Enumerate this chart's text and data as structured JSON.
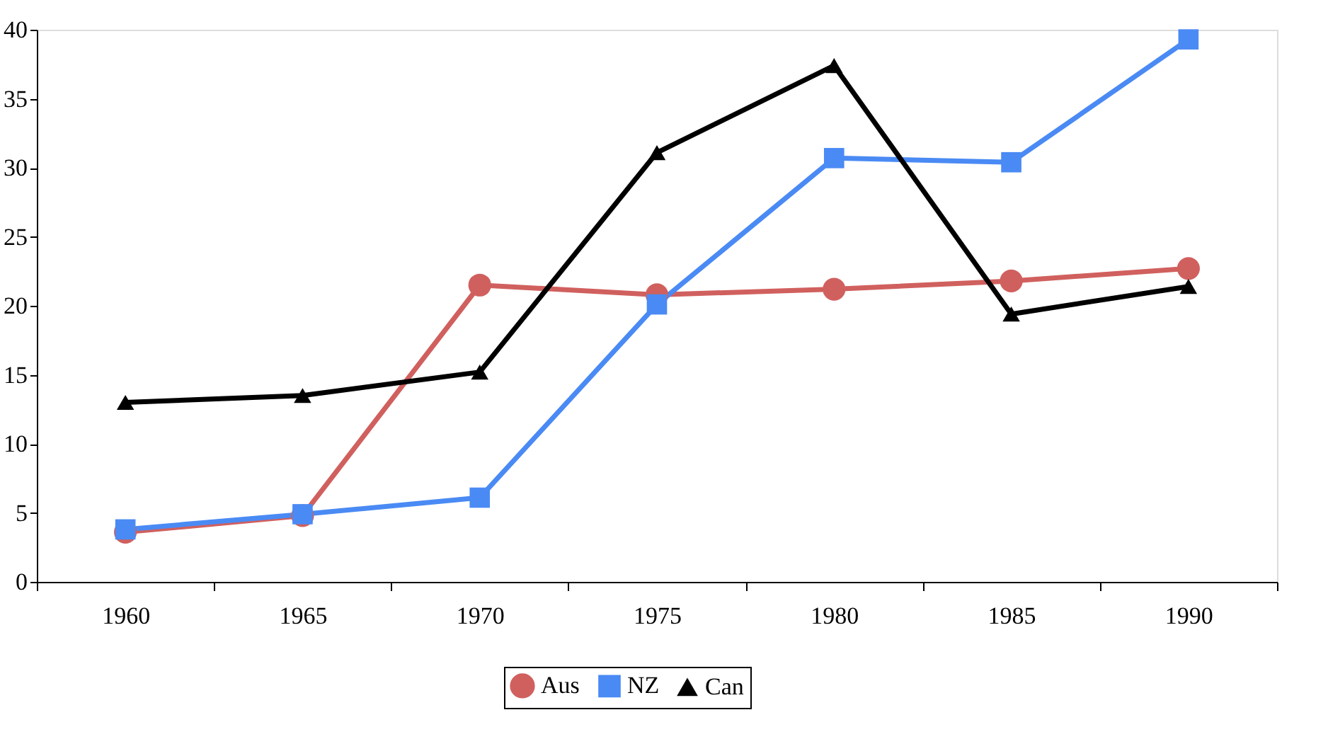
{
  "chart_data": {
    "type": "line",
    "categories": [
      "1960",
      "1965",
      "1970",
      "1975",
      "1980",
      "1985",
      "1990"
    ],
    "series": [
      {
        "name": "Aus",
        "color": "#d0605e",
        "marker": "circle",
        "values": [
          3.6,
          4.8,
          21.5,
          20.8,
          21.2,
          21.8,
          22.7
        ]
      },
      {
        "name": "NZ",
        "color": "#4a8af4",
        "marker": "square",
        "values": [
          3.8,
          4.9,
          6.1,
          20.1,
          30.7,
          30.4,
          39.3
        ]
      },
      {
        "name": "Can",
        "color": "#000000",
        "marker": "triangle",
        "values": [
          13.0,
          13.5,
          15.2,
          31.1,
          37.4,
          19.4,
          21.4
        ]
      }
    ],
    "ylim": [
      0,
      40
    ],
    "yticks": [
      0,
      5,
      10,
      15,
      20,
      25,
      30,
      35,
      40
    ],
    "grid": false,
    "legend": "bottom",
    "line_style": "solid"
  }
}
